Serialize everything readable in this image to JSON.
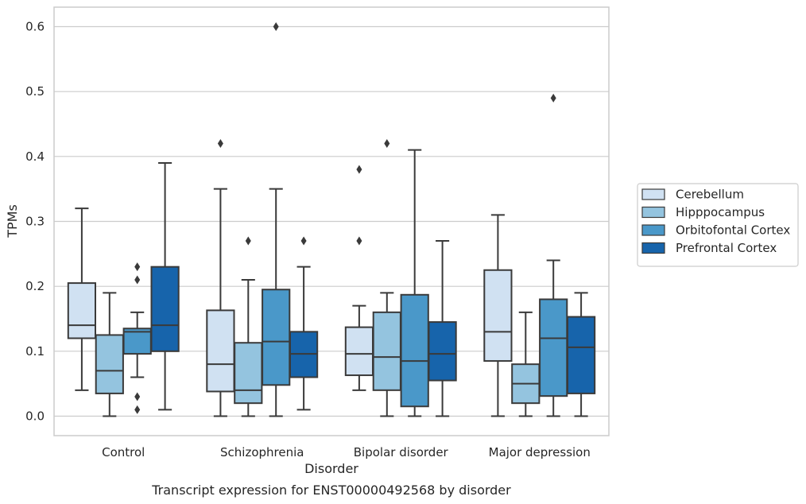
{
  "chart_data": {
    "type": "boxplot",
    "caption": "Transcript expression for ENST00000492568 by disorder",
    "xlabel": "Disorder",
    "ylabel": "TPMs",
    "ylim": [
      -0.03,
      0.63
    ],
    "yticks": [
      0.0,
      0.1,
      0.2,
      0.3,
      0.4,
      0.5,
      0.6
    ],
    "ytick_labels": [
      "0.0",
      "0.1",
      "0.2",
      "0.3",
      "0.4",
      "0.5",
      "0.6"
    ],
    "grid": "horizontal",
    "legend_position": "right",
    "categories": [
      "Control",
      "Schizophrenia",
      "Bipolar disorder",
      "Major depression"
    ],
    "series": [
      {
        "name": "Cerebellum",
        "color": "#d0e1f2",
        "boxes": [
          {
            "whislo": 0.04,
            "q1": 0.12,
            "med": 0.14,
            "q3": 0.205,
            "whishi": 0.32,
            "fliers": []
          },
          {
            "whislo": 0.0,
            "q1": 0.038,
            "med": 0.08,
            "q3": 0.163,
            "whishi": 0.35,
            "fliers": [
              0.42
            ]
          },
          {
            "whislo": 0.04,
            "q1": 0.063,
            "med": 0.096,
            "q3": 0.137,
            "whishi": 0.17,
            "fliers": [
              0.27,
              0.38
            ]
          },
          {
            "whislo": 0.0,
            "q1": 0.085,
            "med": 0.13,
            "q3": 0.225,
            "whishi": 0.31,
            "fliers": []
          }
        ]
      },
      {
        "name": "Hipppocampus",
        "color": "#94c4df",
        "boxes": [
          {
            "whislo": 0.0,
            "q1": 0.035,
            "med": 0.07,
            "q3": 0.125,
            "whishi": 0.19,
            "fliers": []
          },
          {
            "whislo": 0.0,
            "q1": 0.02,
            "med": 0.04,
            "q3": 0.113,
            "whishi": 0.21,
            "fliers": [
              0.27
            ]
          },
          {
            "whislo": 0.0,
            "q1": 0.04,
            "med": 0.091,
            "q3": 0.16,
            "whishi": 0.19,
            "fliers": [
              0.42
            ]
          },
          {
            "whislo": 0.0,
            "q1": 0.02,
            "med": 0.05,
            "q3": 0.08,
            "whishi": 0.16,
            "fliers": []
          }
        ]
      },
      {
        "name": "Orbitofontal Cortex",
        "color": "#4a98c9",
        "boxes": [
          {
            "whislo": 0.06,
            "q1": 0.096,
            "med": 0.13,
            "q3": 0.135,
            "whishi": 0.16,
            "fliers": [
              0.01,
              0.03,
              0.21,
              0.23
            ]
          },
          {
            "whislo": 0.0,
            "q1": 0.048,
            "med": 0.115,
            "q3": 0.195,
            "whishi": 0.35,
            "fliers": [
              0.6
            ]
          },
          {
            "whislo": 0.0,
            "q1": 0.015,
            "med": 0.085,
            "q3": 0.187,
            "whishi": 0.41,
            "fliers": []
          },
          {
            "whislo": 0.0,
            "q1": 0.031,
            "med": 0.12,
            "q3": 0.18,
            "whishi": 0.24,
            "fliers": [
              0.49
            ]
          }
        ]
      },
      {
        "name": "Prefrontal Cortex",
        "color": "#1764ab",
        "boxes": [
          {
            "whislo": 0.01,
            "q1": 0.1,
            "med": 0.14,
            "q3": 0.23,
            "whishi": 0.39,
            "fliers": []
          },
          {
            "whislo": 0.01,
            "q1": 0.06,
            "med": 0.096,
            "q3": 0.13,
            "whishi": 0.23,
            "fliers": [
              0.27
            ]
          },
          {
            "whislo": 0.0,
            "q1": 0.055,
            "med": 0.096,
            "q3": 0.145,
            "whishi": 0.27,
            "fliers": []
          },
          {
            "whislo": 0.0,
            "q1": 0.035,
            "med": 0.106,
            "q3": 0.153,
            "whishi": 0.19,
            "fliers": []
          }
        ]
      }
    ]
  }
}
